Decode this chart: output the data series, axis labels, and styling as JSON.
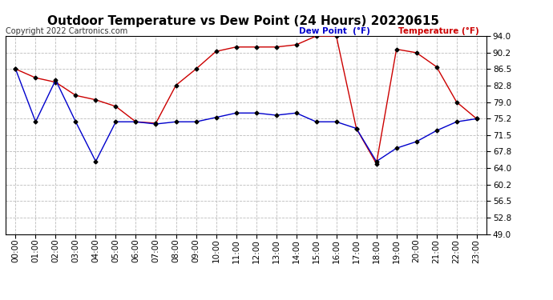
{
  "title": "Outdoor Temperature vs Dew Point (24 Hours) 20220615",
  "copyright": "Copyright 2022 Cartronics.com",
  "legend_dew": "Dew Point  (°F)",
  "legend_temp": "Temperature (°F)",
  "hours": [
    "00:00",
    "01:00",
    "02:00",
    "03:00",
    "04:00",
    "05:00",
    "06:00",
    "07:00",
    "08:00",
    "09:00",
    "10:00",
    "11:00",
    "12:00",
    "13:00",
    "14:00",
    "15:00",
    "16:00",
    "17:00",
    "18:00",
    "19:00",
    "20:00",
    "21:00",
    "22:00",
    "23:00"
  ],
  "temperature": [
    86.5,
    84.5,
    83.5,
    80.5,
    79.5,
    78.0,
    74.5,
    74.2,
    82.8,
    86.5,
    90.5,
    91.5,
    91.5,
    91.5,
    92.0,
    94.0,
    94.0,
    73.0,
    65.0,
    91.0,
    90.2,
    87.0,
    79.0,
    75.2
  ],
  "dew_point": [
    86.5,
    74.5,
    84.0,
    74.5,
    65.5,
    74.5,
    74.5,
    74.0,
    74.5,
    74.5,
    75.5,
    76.5,
    76.5,
    76.0,
    76.5,
    74.5,
    74.5,
    73.0,
    65.5,
    68.5,
    70.0,
    72.5,
    74.5,
    75.2
  ],
  "temp_color": "#cc0000",
  "dew_color": "#0000cc",
  "marker_color": "#000000",
  "ylim_min": 49.0,
  "ylim_max": 94.0,
  "yticks": [
    49.0,
    52.8,
    56.5,
    60.2,
    64.0,
    67.8,
    71.5,
    75.2,
    79.0,
    82.8,
    86.5,
    90.2,
    94.0
  ],
  "bg_color": "#ffffff",
  "grid_color": "#bbbbbb",
  "title_fontsize": 11,
  "label_fontsize": 7.5,
  "copyright_fontsize": 7,
  "legend_fontsize": 7.5
}
